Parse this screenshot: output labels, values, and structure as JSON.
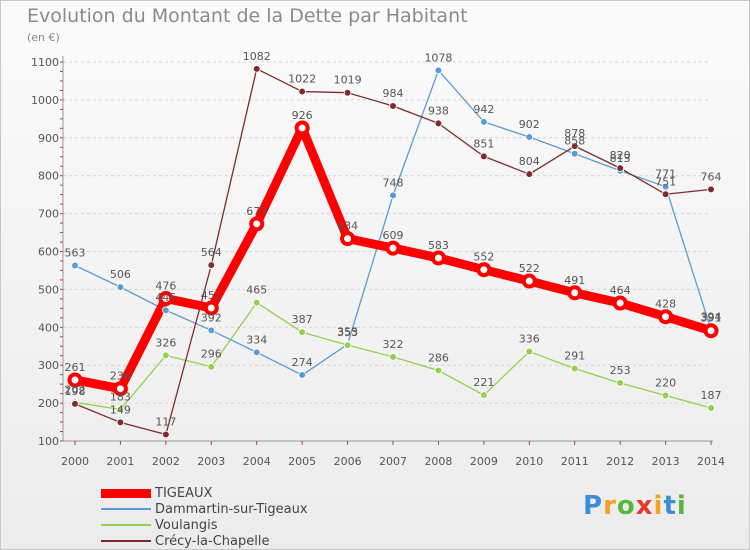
{
  "title": "Evolution du Montant de la Dette par Habitant",
  "unit": "(en €)",
  "logo": {
    "text": "Proxiti",
    "colors": [
      "#3a8fd4",
      "#f3a221",
      "#5ab543",
      "#e53a2a",
      "#f3a221",
      "#3a8fd4",
      "#5ab543"
    ]
  },
  "chart_data": {
    "type": "line",
    "x": [
      2000,
      2001,
      2002,
      2003,
      2004,
      2005,
      2006,
      2007,
      2008,
      2009,
      2010,
      2011,
      2012,
      2013,
      2014
    ],
    "ylim": [
      100,
      1100
    ],
    "yticks": [
      100,
      200,
      300,
      400,
      500,
      600,
      700,
      800,
      900,
      1000,
      1100
    ],
    "grid": "horizontal dashed",
    "legend": "bottom-left",
    "series": [
      {
        "name": "TIGEAUX",
        "color": "#ff0000",
        "values": [
          261,
          238,
          476,
          451,
          673,
          926,
          634,
          609,
          583,
          552,
          522,
          491,
          464,
          428,
          391
        ]
      },
      {
        "name": "Dammartin-sur-Tigeaux",
        "color": "#5b9bd5",
        "values": [
          563,
          506,
          445,
          392,
          334,
          274,
          355,
          748,
          1078,
          942,
          902,
          858,
          813,
          771,
          394
        ]
      },
      {
        "name": "Voulangis",
        "color": "#92d050",
        "values": [
          202,
          183,
          326,
          296,
          465,
          387,
          353,
          322,
          286,
          221,
          336,
          291,
          253,
          220,
          187
        ]
      },
      {
        "name": "Crécy-la-Chapelle",
        "color": "#7f2b2b",
        "values": [
          198,
          149,
          117,
          564,
          1082,
          1022,
          1019,
          984,
          938,
          851,
          804,
          878,
          820,
          751,
          764
        ]
      }
    ]
  }
}
